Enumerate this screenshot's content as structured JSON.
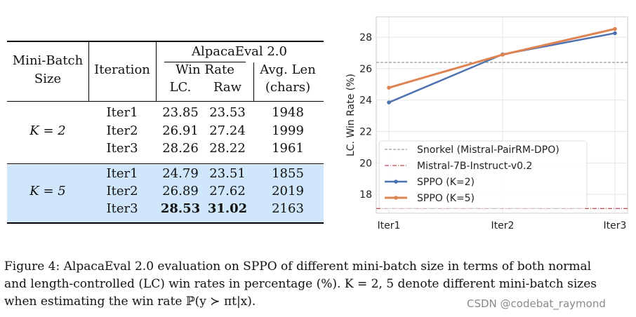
{
  "table": {
    "header": {
      "col1_line1": "Mini-Batch",
      "col1_line2": "Size",
      "col2": "Iteration",
      "group": "AlpacaEval 2.0",
      "winrate": "Win Rate",
      "avglen": "Avg. Len",
      "lc": "LC.",
      "raw": "Raw",
      "chars": "(chars)"
    },
    "groups": [
      {
        "label": "K = 2",
        "rows": [
          {
            "iter": "Iter1",
            "lc": "23.85",
            "raw": "23.53",
            "len": "1948"
          },
          {
            "iter": "Iter2",
            "lc": "26.91",
            "raw": "27.24",
            "len": "1999"
          },
          {
            "iter": "Iter3",
            "lc": "28.26",
            "raw": "28.22",
            "len": "1961"
          }
        ]
      },
      {
        "label": "K = 5",
        "rows": [
          {
            "iter": "Iter1",
            "lc": "24.79",
            "raw": "23.51",
            "len": "1855"
          },
          {
            "iter": "Iter2",
            "lc": "26.89",
            "raw": "27.62",
            "len": "2019"
          },
          {
            "iter": "Iter3",
            "lc": "28.53",
            "raw": "31.02",
            "len": "2163"
          }
        ]
      }
    ]
  },
  "chart_data": {
    "type": "line",
    "title": "",
    "xlabel": "",
    "ylabel": "LC. Win Rate (%)",
    "categories": [
      "Iter1",
      "Iter2",
      "Iter3"
    ],
    "ylim": [
      16.8,
      29.3
    ],
    "yticks": [
      18,
      20,
      22,
      24,
      26,
      28
    ],
    "grid": true,
    "legend_position": "lower-left",
    "series": [
      {
        "name": "Snorkel (Mistral-PairRM-DPO)",
        "kind": "hline",
        "value": 26.4,
        "color": "#808080",
        "style": "dashed"
      },
      {
        "name": "Mistral-7B-Instruct-v0.2",
        "kind": "hline",
        "value": 17.1,
        "color": "#a81d2a",
        "style": "dashdot"
      },
      {
        "name": "SPPO (K=2)",
        "kind": "line",
        "values": [
          23.85,
          26.91,
          28.26
        ],
        "color": "#4c72b0"
      },
      {
        "name": "SPPO (K=5)",
        "kind": "line",
        "values": [
          24.79,
          26.89,
          28.53
        ],
        "color": "#dd8452"
      }
    ]
  },
  "caption": {
    "line1": "Figure 4: AlpacaEval 2.0 evaluation on SPPO of different mini-batch size in terms of both normal",
    "line2": "and length-controlled (LC) win rates in percentage (%). K = 2, 5 denote different mini-batch sizes",
    "line3": "when estimating the win rate ℙ(y ≻ πt|x)."
  },
  "watermark": "CSDN @codebat_raymond"
}
